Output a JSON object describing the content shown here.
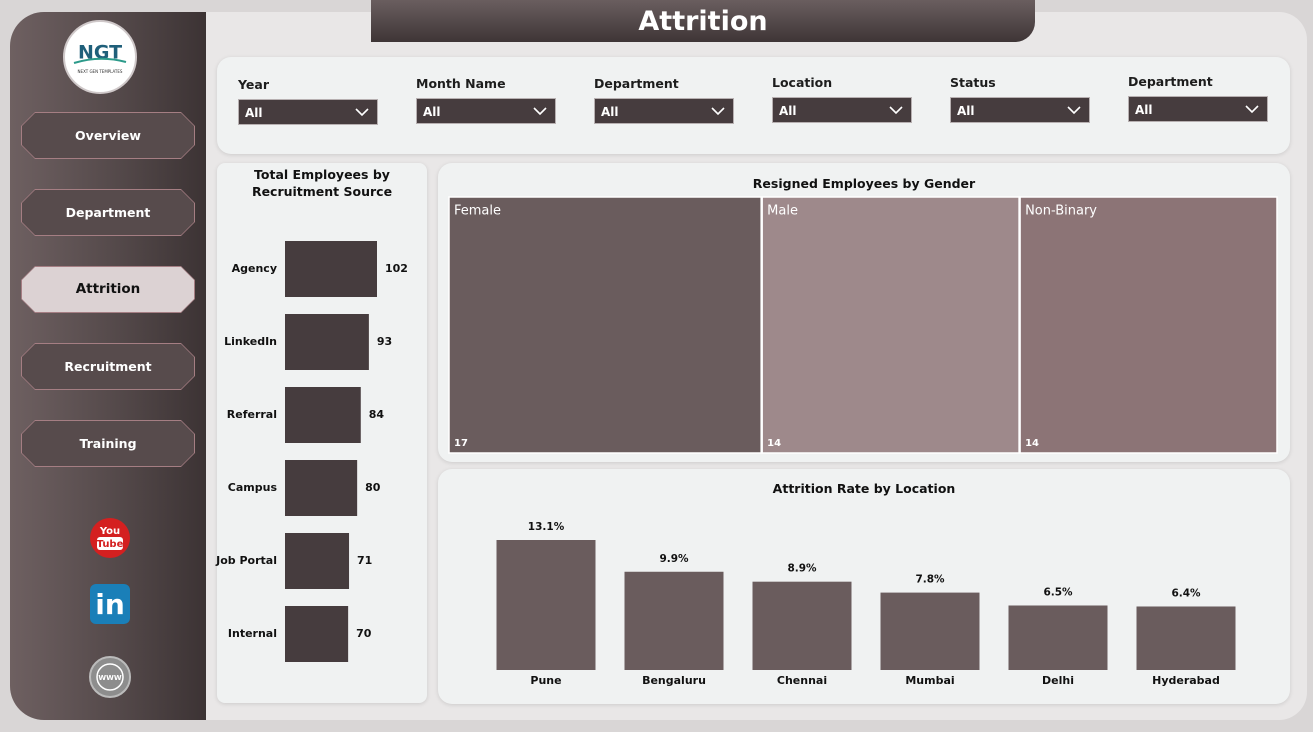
{
  "title": "Attrition",
  "logo": {
    "text": "NGT",
    "subtext": "NEXT GEN TEMPLATES"
  },
  "nav": [
    "Overview",
    "Department",
    "Attrition",
    "Recruitment",
    "Training"
  ],
  "active_nav": 2,
  "social": {
    "youtube": [
      "You",
      "Tube"
    ],
    "linkedin": "in",
    "web": "WWW"
  },
  "filters": [
    {
      "label": "Year",
      "value": "All"
    },
    {
      "label": "Month Name",
      "value": "All"
    },
    {
      "label": "Department",
      "value": "All"
    },
    {
      "label": "Location",
      "value": "All"
    },
    {
      "label": "Status",
      "value": "All"
    },
    {
      "label": "Department",
      "value": "All"
    }
  ],
  "chart_data": [
    {
      "type": "hbar",
      "title": "Total Employees by Recruitment Source",
      "categories": [
        "Agency",
        "LinkedIn",
        "Referral",
        "Campus",
        "Job Portal",
        "Internal"
      ],
      "values": [
        102,
        93,
        84,
        80,
        71,
        70
      ],
      "color": "#463c3e"
    },
    {
      "type": "treemap",
      "title": "Resigned Employees by Gender",
      "categories": [
        "Female",
        "Male",
        "Non-Binary"
      ],
      "values": [
        17,
        14,
        14
      ],
      "colors": [
        "#6a5c5d",
        "#9e898b",
        "#8c7476"
      ]
    },
    {
      "type": "bar",
      "title": "Attrition Rate by Location",
      "categories": [
        "Pune",
        "Bengaluru",
        "Chennai",
        "Mumbai",
        "Delhi",
        "Hyderabad"
      ],
      "values": [
        13.1,
        9.9,
        8.9,
        7.8,
        6.5,
        6.4
      ],
      "value_labels": [
        "13.1%",
        "9.9%",
        "8.9%",
        "7.8%",
        "6.5%",
        "6.4%"
      ],
      "color": "#6a5c5d"
    }
  ]
}
